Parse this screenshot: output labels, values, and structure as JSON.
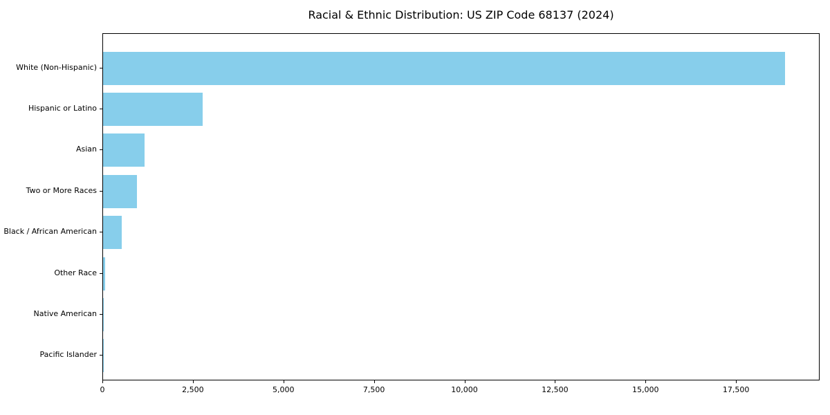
{
  "page": {
    "background_color": "#ffffff",
    "text_color": "#000000"
  },
  "chart_data": {
    "type": "bar",
    "orientation": "horizontal",
    "title": "Racial & Ethnic Distribution: US ZIP Code 68137 (2024)",
    "categories": [
      "White (Non-Hispanic)",
      "Hispanic or Latino",
      "Asian",
      "Two or More Races",
      "Black / African American",
      "Other Race",
      "Native American",
      "Pacific Islander"
    ],
    "values": [
      18830,
      2760,
      1140,
      930,
      515,
      50,
      20,
      10
    ],
    "xlabel": "",
    "ylabel": "",
    "xlim": [
      0,
      19770
    ],
    "x_ticks": [
      0,
      2500,
      5000,
      7500,
      10000,
      12500,
      15000,
      17500
    ],
    "x_tick_labels": [
      "0",
      "2,500",
      "5,000",
      "7,500",
      "10,000",
      "12,500",
      "15,000",
      "17,500"
    ],
    "bar_color": "#87CEEB",
    "grid": false,
    "legend_position": "none"
  }
}
